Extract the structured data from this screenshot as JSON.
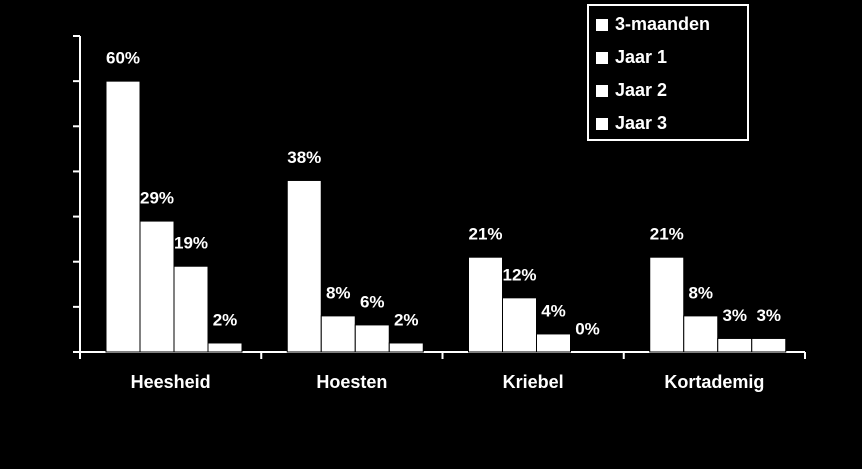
{
  "chart_data": {
    "type": "bar",
    "categories": [
      "Heesheid",
      "Hoesten",
      "Kriebel",
      "Kortademig"
    ],
    "series": [
      {
        "name": "3-maanden",
        "color": "#ffffff",
        "values": [
          60,
          38,
          21,
          21
        ],
        "value_labels": [
          "60%",
          "38%",
          "21%",
          "21%"
        ]
      },
      {
        "name": "Jaar 1",
        "color": "#ffffff",
        "values": [
          29,
          8,
          12,
          8
        ],
        "value_labels": [
          "29%",
          "8%",
          "12%",
          "8%"
        ]
      },
      {
        "name": "Jaar 2",
        "color": "#ffffff",
        "values": [
          19,
          6,
          4,
          3
        ],
        "value_labels": [
          "19%",
          "6%",
          "4%",
          "3%"
        ]
      },
      {
        "name": "Jaar 3",
        "color": "#ffffff",
        "values": [
          2,
          2,
          0,
          3
        ],
        "value_labels": [
          "2%",
          "2%",
          "0%",
          "3%"
        ]
      }
    ],
    "ylim": [
      0,
      70
    ],
    "yticks": [
      0,
      10,
      20,
      30,
      40,
      50,
      60,
      70
    ],
    "legend": "upper right"
  }
}
